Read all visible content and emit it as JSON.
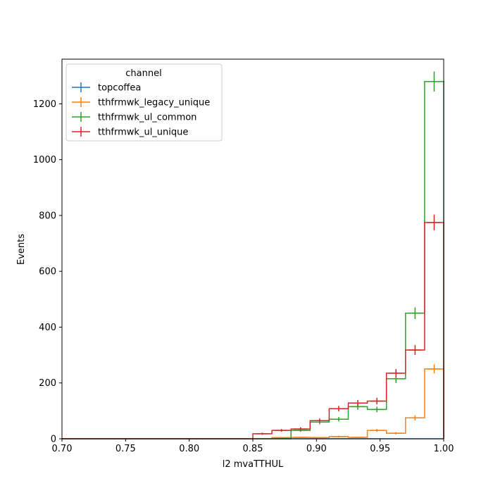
{
  "chart_data": {
    "type": "histogram",
    "xlabel": "l2 mvaTTHUL",
    "ylabel": "Events",
    "xlim": [
      0.7,
      1.0
    ],
    "ylim": [
      0,
      1360
    ],
    "xticks": [
      "0.70",
      "0.75",
      "0.80",
      "0.85",
      "0.90",
      "0.95",
      "1.00"
    ],
    "xtick_values": [
      0.7,
      0.75,
      0.8,
      0.85,
      0.9,
      0.95,
      1.0
    ],
    "yticks": [
      "0",
      "200",
      "400",
      "600",
      "800",
      "1000",
      "1200"
    ],
    "ytick_values": [
      0,
      200,
      400,
      600,
      800,
      1000,
      1200
    ],
    "bin_edges": [
      0.7,
      0.715,
      0.73,
      0.745,
      0.76,
      0.775,
      0.79,
      0.805,
      0.82,
      0.835,
      0.85,
      0.865,
      0.88,
      0.895,
      0.91,
      0.925,
      0.94,
      0.955,
      0.97,
      0.985,
      1.0
    ],
    "legend": {
      "title": "channel",
      "location": "upper left"
    },
    "grid": false,
    "series": [
      {
        "name": "topcoffea",
        "color": "#1f77b4",
        "values": [
          0,
          0,
          0,
          0,
          0,
          0,
          0,
          0,
          0,
          0,
          0,
          0,
          0,
          0,
          0,
          0,
          0,
          0,
          0,
          0
        ],
        "errors": [
          0,
          0,
          0,
          0,
          0,
          0,
          0,
          0,
          0,
          0,
          0,
          0,
          0,
          0,
          0,
          0,
          0,
          0,
          0,
          0
        ]
      },
      {
        "name": "tthfrmwk_legacy_unique",
        "color": "#ff7f0e",
        "values": [
          0,
          0,
          0,
          0,
          0,
          0,
          0,
          0,
          0,
          0,
          0,
          4,
          5,
          4,
          8,
          5,
          30,
          20,
          75,
          250
        ],
        "errors": [
          0,
          0,
          0,
          0,
          0,
          0,
          0,
          0,
          0,
          0,
          0,
          2,
          2,
          2,
          3,
          2,
          5,
          4,
          9,
          16
        ]
      },
      {
        "name": "tthfrmwk_ul_common",
        "color": "#2ca02c",
        "values": [
          0,
          0,
          0,
          0,
          0,
          0,
          0,
          0,
          0,
          0,
          0,
          0,
          30,
          60,
          70,
          115,
          105,
          215,
          450,
          1280
        ],
        "errors": [
          0,
          0,
          0,
          0,
          0,
          0,
          0,
          0,
          0,
          0,
          0,
          0,
          5,
          8,
          8,
          11,
          10,
          15,
          21,
          36
        ]
      },
      {
        "name": "tthfrmwk_ul_unique",
        "color": "#d62728",
        "values": [
          0,
          0,
          0,
          0,
          0,
          0,
          0,
          0,
          0,
          0,
          18,
          30,
          35,
          65,
          108,
          128,
          135,
          235,
          318,
          775
        ],
        "errors": [
          0,
          0,
          0,
          0,
          0,
          0,
          0,
          0,
          0,
          0,
          4,
          5,
          6,
          8,
          10,
          11,
          12,
          15,
          18,
          28
        ]
      }
    ]
  }
}
